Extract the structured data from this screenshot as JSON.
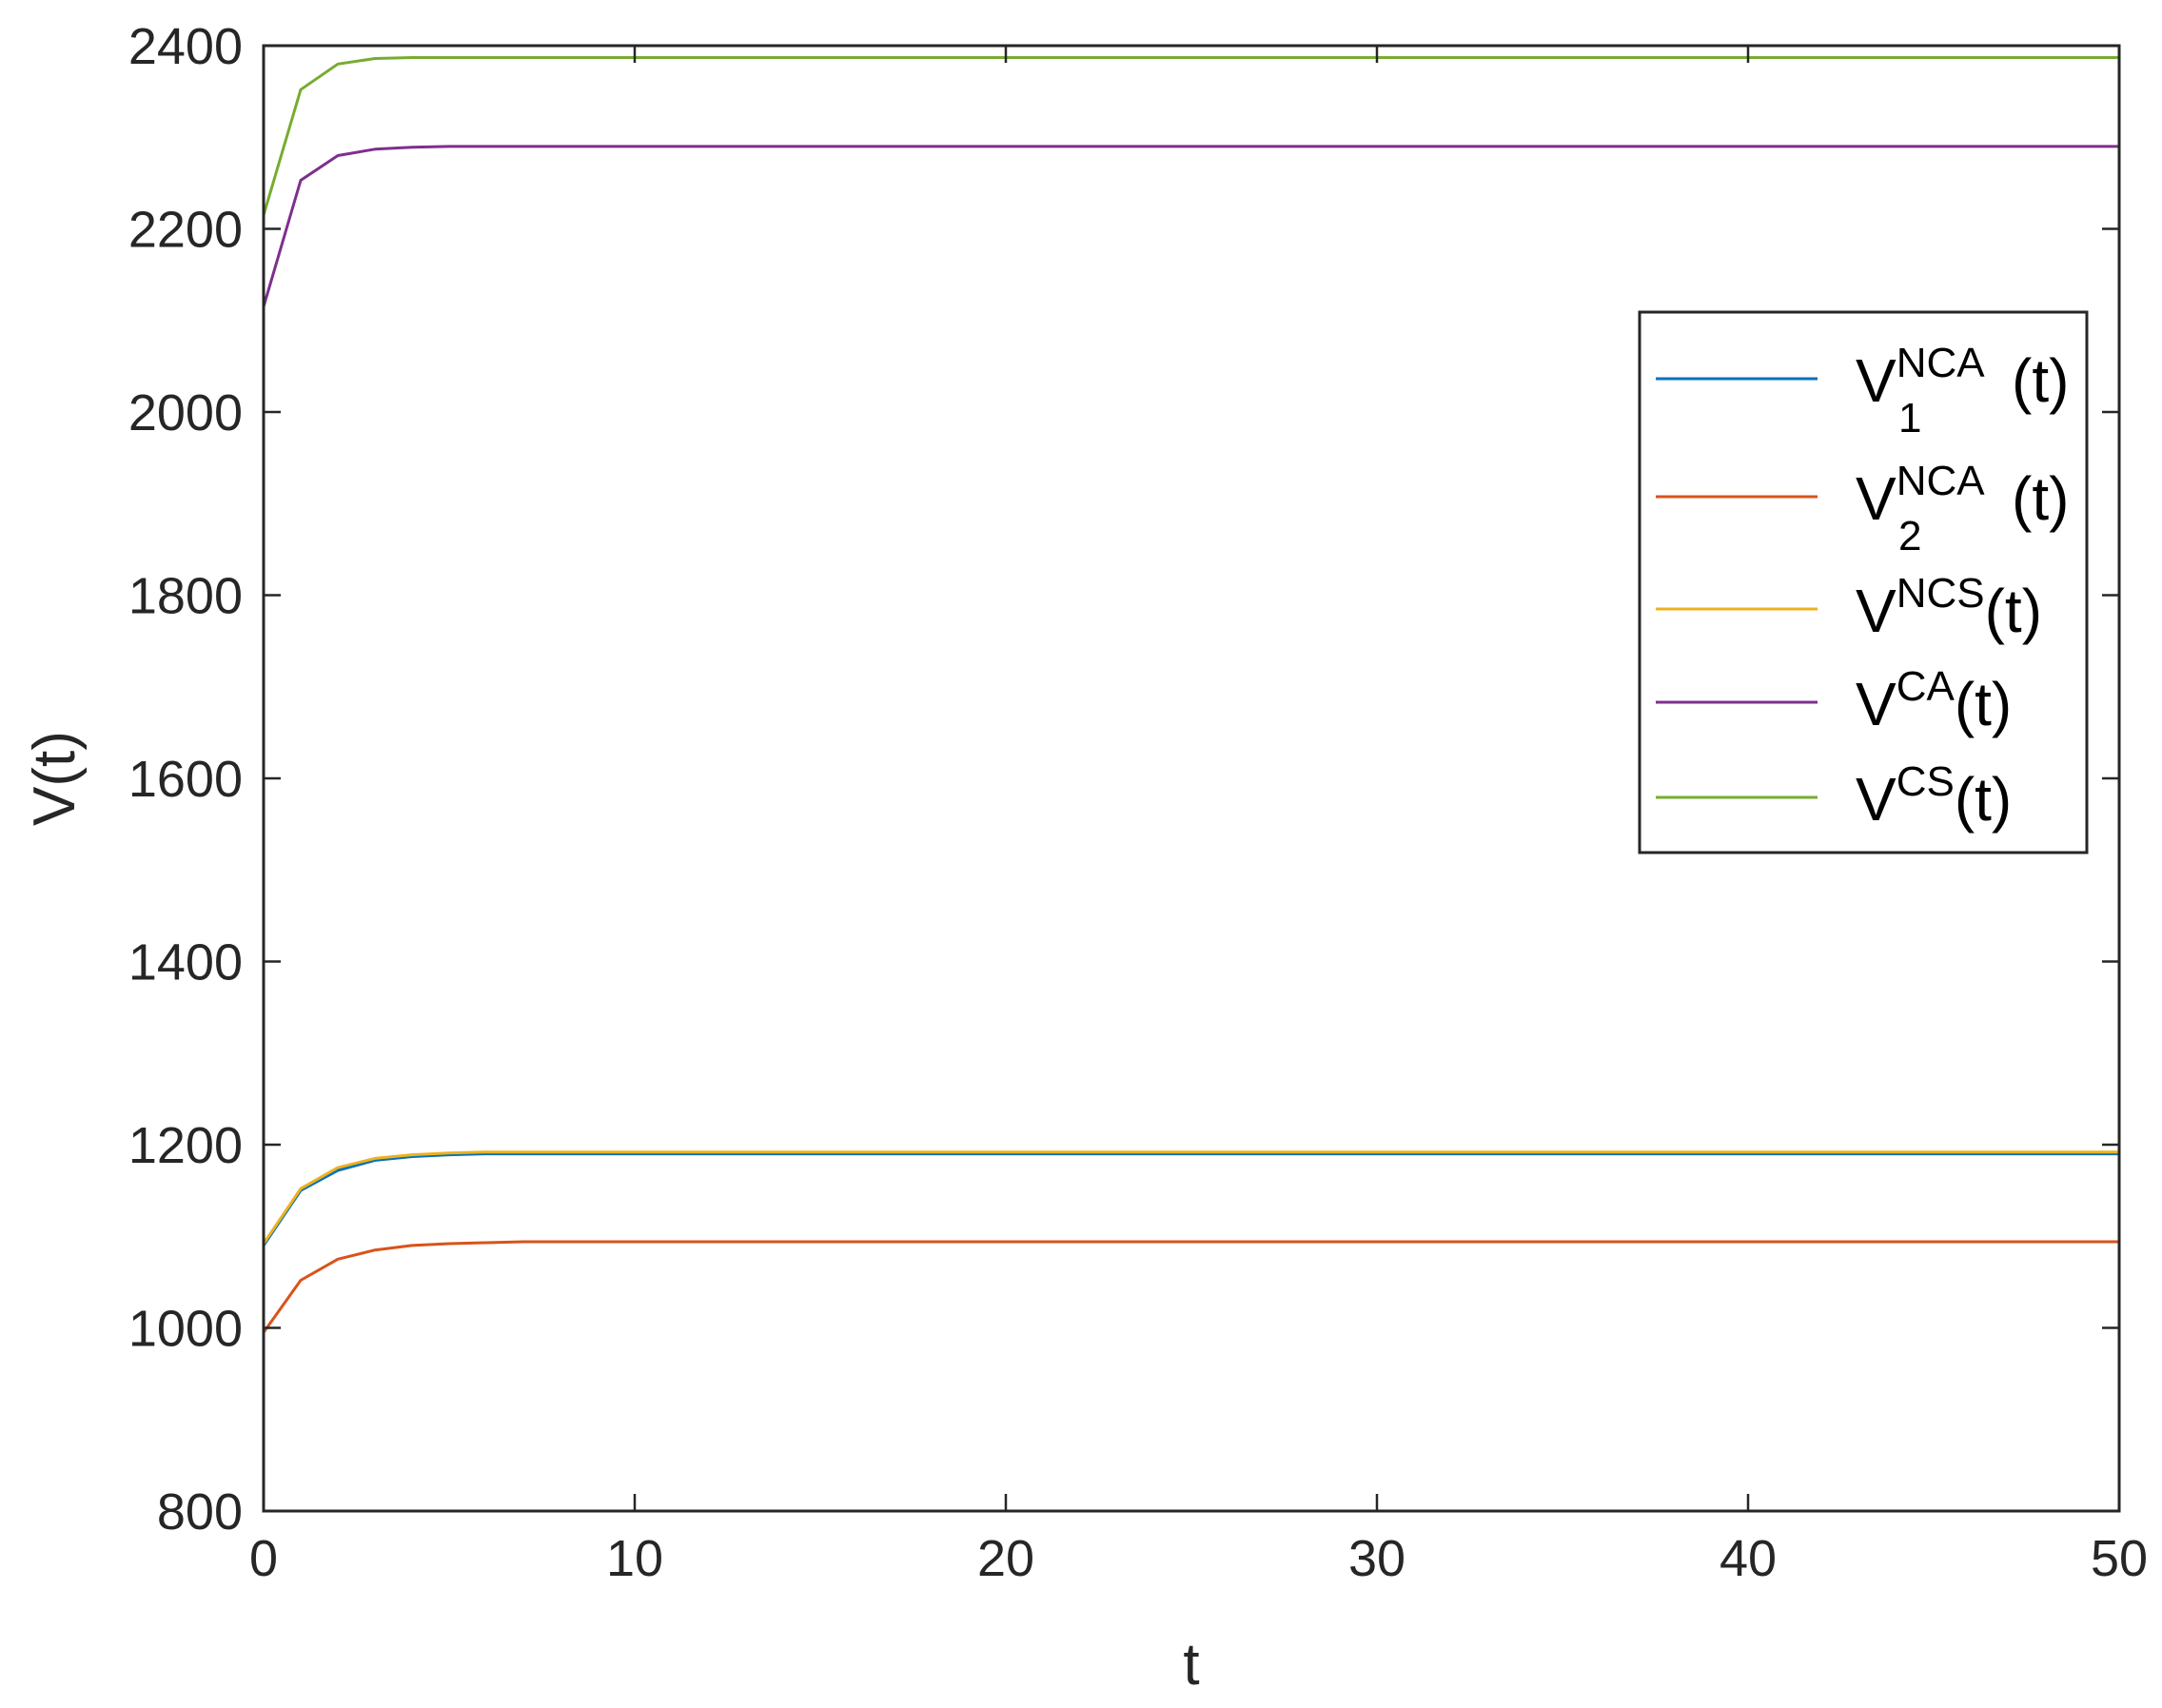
{
  "chart_data": {
    "type": "line",
    "title": "",
    "xlabel": "t",
    "ylabel": "V(t)",
    "xlim": [
      0,
      50
    ],
    "ylim": [
      800,
      2400
    ],
    "xticks": [
      "0",
      "10",
      "20",
      "30",
      "40",
      "50"
    ],
    "yticks": [
      "800",
      "1000",
      "1200",
      "1400",
      "1600",
      "1800",
      "2000",
      "2200",
      "2400"
    ],
    "grid": false,
    "legend_position": "upper-right",
    "x": [
      0,
      1,
      2,
      3,
      4,
      5,
      6,
      7,
      8,
      9,
      10,
      11,
      12,
      13,
      14,
      15,
      16,
      17,
      18,
      19,
      20,
      21,
      22,
      23,
      24,
      25,
      26,
      27,
      28,
      29,
      30,
      31,
      32,
      33,
      34,
      35,
      36,
      37,
      38,
      39,
      40,
      41,
      42,
      43,
      44,
      45,
      46,
      47,
      48,
      49,
      50
    ],
    "series": [
      {
        "name": "V1NCA(t)",
        "legend": {
          "base": "V",
          "sup": "NCA",
          "sub": "1",
          "suffix": "(t)"
        },
        "color": "#0072BD",
        "values": [
          1090,
          1150,
          1172,
          1183,
          1187,
          1189,
          1190,
          1190,
          1190,
          1190,
          1190,
          1190,
          1190,
          1190,
          1190,
          1190,
          1190,
          1190,
          1190,
          1190,
          1190,
          1190,
          1190,
          1190,
          1190,
          1190,
          1190,
          1190,
          1190,
          1190,
          1190,
          1190,
          1190,
          1190,
          1190,
          1190,
          1190,
          1190,
          1190,
          1190,
          1190,
          1190,
          1190,
          1190,
          1190,
          1190,
          1190,
          1190,
          1190,
          1190,
          1190
        ]
      },
      {
        "name": "V2NCA(t)",
        "legend": {
          "base": "V",
          "sup": "NCA",
          "sub": "2",
          "suffix": "(t)"
        },
        "color": "#D95319",
        "values": [
          995,
          1052,
          1075,
          1085,
          1090,
          1092,
          1093,
          1094,
          1094,
          1094,
          1094,
          1094,
          1094,
          1094,
          1094,
          1094,
          1094,
          1094,
          1094,
          1094,
          1094,
          1094,
          1094,
          1094,
          1094,
          1094,
          1094,
          1094,
          1094,
          1094,
          1094,
          1094,
          1094,
          1094,
          1094,
          1094,
          1094,
          1094,
          1094,
          1094,
          1094,
          1094,
          1094,
          1094,
          1094,
          1094,
          1094,
          1094,
          1094,
          1094,
          1094
        ]
      },
      {
        "name": "VNCS(t)",
        "legend": {
          "base": "V",
          "sup": "NCS",
          "sub": "",
          "suffix": "(t)"
        },
        "color": "#EDB120",
        "values": [
          1092,
          1152,
          1175,
          1185,
          1189,
          1191,
          1192,
          1192,
          1192,
          1192,
          1192,
          1192,
          1192,
          1192,
          1192,
          1192,
          1192,
          1192,
          1192,
          1192,
          1192,
          1192,
          1192,
          1192,
          1192,
          1192,
          1192,
          1192,
          1192,
          1192,
          1192,
          1192,
          1192,
          1192,
          1192,
          1192,
          1192,
          1192,
          1192,
          1192,
          1192,
          1192,
          1192,
          1192,
          1192,
          1192,
          1192,
          1192,
          1192,
          1192,
          1192
        ]
      },
      {
        "name": "VCA(t)",
        "legend": {
          "base": "V",
          "sup": "CA",
          "sub": "",
          "suffix": "(t)"
        },
        "color": "#7E2F8E",
        "values": [
          2115,
          2253,
          2280,
          2287,
          2289,
          2290,
          2290,
          2290,
          2290,
          2290,
          2290,
          2290,
          2290,
          2290,
          2290,
          2290,
          2290,
          2290,
          2290,
          2290,
          2290,
          2290,
          2290,
          2290,
          2290,
          2290,
          2290,
          2290,
          2290,
          2290,
          2290,
          2290,
          2290,
          2290,
          2290,
          2290,
          2290,
          2290,
          2290,
          2290,
          2290,
          2290,
          2290,
          2290,
          2290,
          2290,
          2290,
          2290,
          2290,
          2290,
          2290
        ]
      },
      {
        "name": "VCS(t)",
        "legend": {
          "base": "V",
          "sup": "CS",
          "sub": "",
          "suffix": "(t)"
        },
        "color": "#77AC30",
        "values": [
          2215,
          2352,
          2380,
          2386,
          2387,
          2387,
          2387,
          2387,
          2387,
          2387,
          2387,
          2387,
          2387,
          2387,
          2387,
          2387,
          2387,
          2387,
          2387,
          2387,
          2387,
          2387,
          2387,
          2387,
          2387,
          2387,
          2387,
          2387,
          2387,
          2387,
          2387,
          2387,
          2387,
          2387,
          2387,
          2387,
          2387,
          2387,
          2387,
          2387,
          2387,
          2387,
          2387,
          2387,
          2387,
          2387,
          2387,
          2387,
          2387,
          2387,
          2387
        ]
      }
    ]
  }
}
